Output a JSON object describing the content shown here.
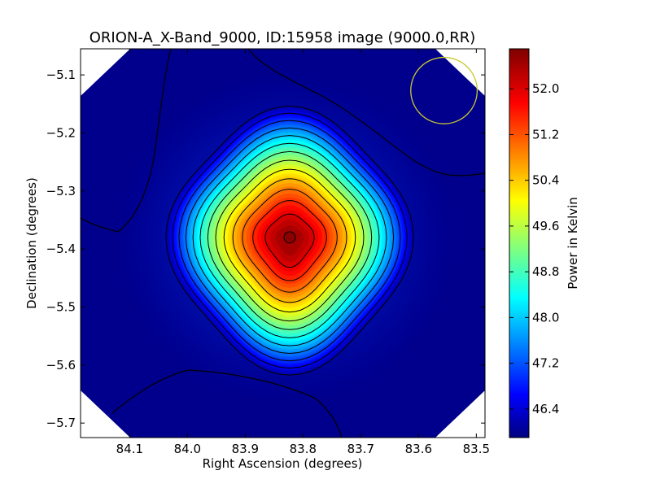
{
  "chart_data": {
    "type": "heatmap",
    "title": "ORION-A_X-Band_9000, ID:15958 image (9000.0,RR)",
    "xlabel": "Right Ascension (degrees)",
    "ylabel": "Declination (degrees)",
    "colorbar_label": "Power in Kelvin",
    "colormap": "jet",
    "x_inverted": true,
    "xlim": [
      84.185,
      83.485
    ],
    "ylim": [
      -5.725,
      -5.055
    ],
    "x_ticks": [
      {
        "value": 84.1,
        "label": "84.1"
      },
      {
        "value": 84.0,
        "label": "84.0"
      },
      {
        "value": 83.9,
        "label": "83.9"
      },
      {
        "value": 83.8,
        "label": "83.8"
      },
      {
        "value": 83.7,
        "label": "83.7"
      },
      {
        "value": 83.6,
        "label": "83.6"
      },
      {
        "value": 83.5,
        "label": "83.5"
      }
    ],
    "y_ticks": [
      {
        "value": -5.1,
        "label": "−5.1"
      },
      {
        "value": -5.2,
        "label": "−5.2"
      },
      {
        "value": -5.3,
        "label": "−5.3"
      },
      {
        "value": -5.4,
        "label": "−5.4"
      },
      {
        "value": -5.5,
        "label": "−5.5"
      },
      {
        "value": -5.6,
        "label": "−5.6"
      },
      {
        "value": -5.7,
        "label": "−5.7"
      }
    ],
    "colorbar_range": [
      45.9,
      52.7
    ],
    "colorbar_ticks": [
      {
        "value": 52.0,
        "label": "52.0"
      },
      {
        "value": 51.2,
        "label": "51.2"
      },
      {
        "value": 50.4,
        "label": "50.4"
      },
      {
        "value": 49.6,
        "label": "49.6"
      },
      {
        "value": 48.8,
        "label": "48.8"
      },
      {
        "value": 48.0,
        "label": "48.0"
      },
      {
        "value": 47.2,
        "label": "47.2"
      },
      {
        "value": 46.4,
        "label": "46.4"
      }
    ],
    "source": {
      "ra": 83.823,
      "dec": -5.38,
      "peak": 52.6
    },
    "background_level": 45.95,
    "contour_count": 13,
    "beam_circle": {
      "ra": 83.556,
      "dec": -5.127,
      "radius_deg": 0.05,
      "color": "#c8c832"
    },
    "grid": false,
    "colorbar_position": "right"
  }
}
